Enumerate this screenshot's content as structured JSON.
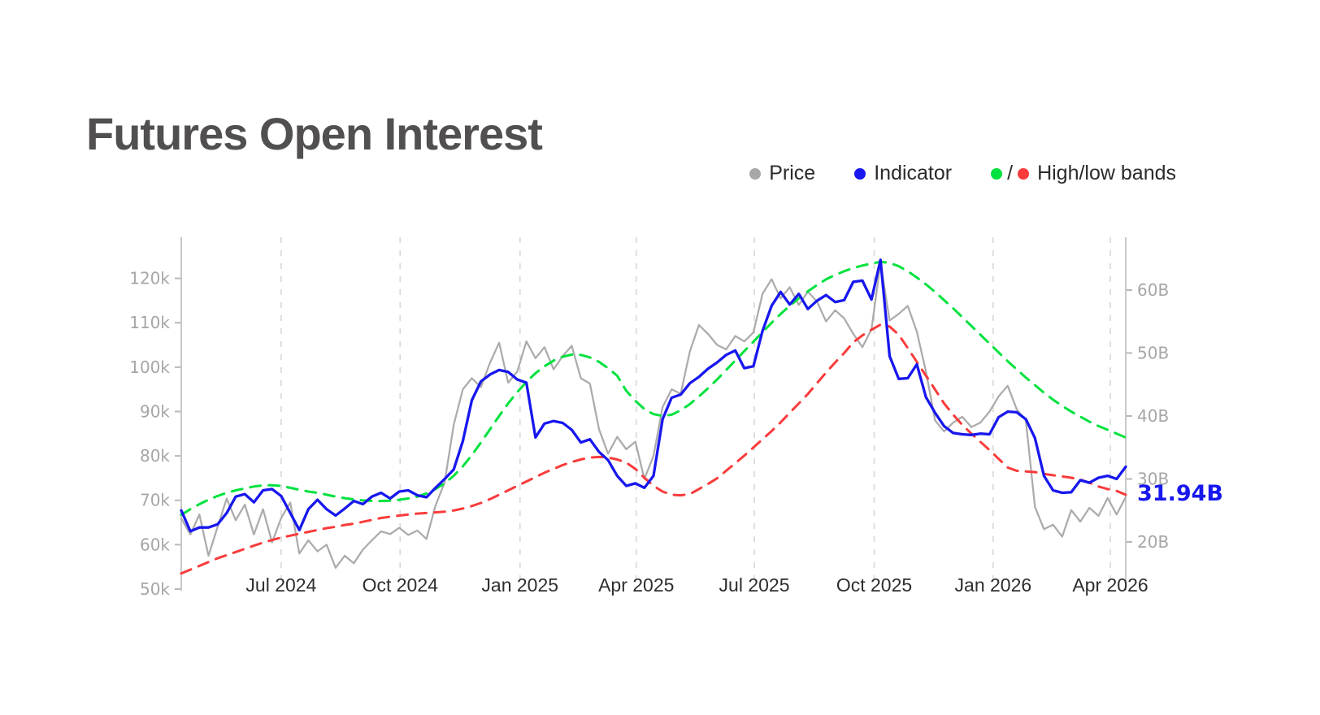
{
  "page": {
    "background": "#ffffff"
  },
  "header": {
    "title": "Futures Open Interest"
  },
  "legend": {
    "items": [
      {
        "id": "price",
        "label": "Price",
        "dot_colors": [
          "#a8a8a8"
        ]
      },
      {
        "id": "indicator",
        "label": "Indicator",
        "dot_colors": [
          "#1717ee"
        ]
      },
      {
        "id": "bands",
        "label": "High/low bands",
        "dot_colors": [
          "#00e23e",
          "#f93b3b"
        ],
        "dot_separator": "/"
      }
    ]
  },
  "chart_data": {
    "type": "line",
    "title": "Futures Open Interest",
    "x": {
      "start_date": "2024-04-15",
      "interval": "weekly",
      "points": 105,
      "ticks": [
        {
          "label": "Jul 2024",
          "week": 11.0
        },
        {
          "label": "Oct 2024",
          "week": 24.1
        },
        {
          "label": "Jan 2025",
          "week": 37.3
        },
        {
          "label": "Apr 2025",
          "week": 50.1
        },
        {
          "label": "Jul 2025",
          "week": 63.1
        },
        {
          "label": "Oct 2025",
          "week": 76.3
        },
        {
          "label": "Jan 2026",
          "week": 89.4
        },
        {
          "label": "Apr 2026",
          "week": 102.3
        }
      ]
    },
    "axes": {
      "left": {
        "unit": "k",
        "ticks": [
          {
            "label": "50k",
            "value": 50
          },
          {
            "label": "60k",
            "value": 60
          },
          {
            "label": "70k",
            "value": 70
          },
          {
            "label": "80k",
            "value": 80
          },
          {
            "label": "90k",
            "value": 90
          },
          {
            "label": "100k",
            "value": 100
          },
          {
            "label": "110k",
            "value": 110
          },
          {
            "label": "120k",
            "value": 120
          }
        ]
      },
      "right": {
        "unit": "B",
        "ticks": [
          {
            "label": "20B",
            "value": 20
          },
          {
            "label": "30B",
            "value": 30
          },
          {
            "label": "40B",
            "value": 40
          },
          {
            "label": "50B",
            "value": 50
          },
          {
            "label": "60B",
            "value": 60
          }
        ]
      }
    },
    "grid": {
      "vertical_dashed": true,
      "horizontal": false
    },
    "series": [
      {
        "id": "price",
        "name": "Price",
        "axis": "left",
        "style": "solid",
        "color": "#ababab",
        "width": 2.25,
        "values": [
          65.9,
          62.3,
          66.8,
          57.5,
          64.0,
          70.4,
          65.5,
          69.0,
          62.3,
          68.0,
          60.5,
          66.0,
          69.5,
          58.0,
          61.0,
          58.5,
          60.0,
          54.8,
          57.5,
          55.8,
          58.9,
          61.0,
          63.0,
          62.4,
          63.8,
          62.2,
          63.2,
          61.3,
          68.8,
          74.0,
          87.0,
          95.0,
          97.5,
          95.5,
          101.0,
          105.5,
          96.5,
          99.0,
          105.8,
          102.0,
          104.5,
          99.5,
          102.5,
          104.8,
          97.5,
          96.3,
          86.0,
          80.5,
          84.3,
          81.5,
          83.2,
          74.8,
          80.0,
          91.0,
          95.0,
          94.0,
          103.5,
          109.5,
          107.5,
          105.0,
          104.0,
          107.0,
          105.8,
          107.8,
          116.5,
          119.8,
          115.5,
          118.0,
          114.0,
          117.0,
          114.8,
          110.3,
          112.8,
          111.0,
          107.5,
          104.5,
          108.5,
          123.5,
          110.5,
          112.0,
          113.8,
          108.0,
          99.0,
          88.0,
          85.5,
          87.5,
          88.8,
          86.5,
          87.5,
          90.0,
          93.4,
          95.8,
          90.5,
          88.0,
          68.5,
          63.5,
          64.5,
          61.8,
          67.8,
          65.2,
          68.3,
          66.5,
          70.5,
          66.8,
          70.7
        ]
      },
      {
        "id": "high_band",
        "name": "High band",
        "axis": "right",
        "style": "dashed",
        "color": "#00e23e",
        "width": 3,
        "values": [
          24.3,
          25.2,
          26.0,
          26.7,
          27.3,
          27.8,
          28.2,
          28.5,
          28.8,
          29.0,
          29.0,
          28.9,
          28.6,
          28.3,
          28.0,
          27.8,
          27.5,
          27.2,
          26.95,
          26.75,
          26.6,
          26.5,
          26.5,
          26.55,
          26.7,
          26.9,
          27.2,
          27.7,
          28.4,
          29.3,
          30.5,
          32.0,
          33.8,
          35.8,
          37.9,
          40.0,
          42.0,
          43.8,
          45.4,
          46.8,
          47.9,
          48.8,
          49.4,
          49.75,
          49.7,
          49.3,
          48.6,
          47.6,
          46.4,
          44.0,
          42.4,
          41.1,
          40.3,
          40.0,
          40.2,
          40.9,
          41.9,
          43.1,
          44.4,
          45.8,
          47.3,
          48.8,
          50.3,
          51.8,
          53.3,
          54.8,
          56.2,
          57.5,
          58.7,
          59.8,
          60.8,
          61.7,
          62.4,
          63.0,
          63.5,
          63.9,
          64.2,
          64.5,
          64.3,
          63.8,
          63.0,
          62.0,
          60.9,
          59.7,
          58.4,
          57.1,
          55.7,
          54.3,
          52.9,
          51.5,
          50.1,
          48.7,
          47.4,
          46.1,
          44.9,
          43.7,
          42.6,
          41.6,
          40.7,
          39.9,
          39.1,
          38.4,
          37.8,
          37.2,
          36.6
        ]
      },
      {
        "id": "low_band",
        "name": "Low band",
        "axis": "right",
        "style": "dashed",
        "color": "#f93b3b",
        "width": 3,
        "values": [
          15.0,
          15.6,
          16.2,
          16.8,
          17.4,
          17.9,
          18.4,
          18.9,
          19.4,
          19.9,
          20.3,
          20.7,
          21.0,
          21.3,
          21.6,
          21.9,
          22.2,
          22.4,
          22.7,
          22.9,
          23.2,
          23.5,
          23.8,
          24.0,
          24.2,
          24.35,
          24.5,
          24.6,
          24.7,
          24.8,
          25.0,
          25.3,
          25.7,
          26.2,
          26.8,
          27.5,
          28.2,
          28.9,
          29.6,
          30.3,
          31.0,
          31.6,
          32.2,
          32.7,
          33.1,
          33.4,
          33.5,
          33.4,
          33.1,
          32.6,
          31.6,
          30.2,
          28.9,
          28.0,
          27.5,
          27.4,
          27.6,
          28.4,
          29.2,
          30.1,
          31.3,
          32.5,
          33.7,
          35.0,
          36.3,
          37.6,
          39.0,
          40.5,
          42.0,
          43.5,
          45.2,
          46.9,
          48.5,
          50.0,
          51.7,
          52.8,
          53.7,
          54.5,
          54.2,
          52.9,
          50.8,
          48.6,
          46.4,
          44.2,
          42.0,
          40.2,
          38.6,
          37.2,
          35.9,
          34.6,
          33.2,
          31.8,
          31.3,
          31.2,
          31.1,
          30.8,
          30.6,
          30.4,
          30.2,
          29.9,
          29.4,
          28.8,
          28.4,
          28.1,
          27.5
        ]
      },
      {
        "id": "indicator",
        "name": "Indicator",
        "axis": "right",
        "style": "solid",
        "color": "#1717ee",
        "width": 3.3,
        "current_value_label": "31.94B",
        "values": [
          25.0,
          21.7,
          22.3,
          22.3,
          22.8,
          24.6,
          27.2,
          27.6,
          26.3,
          28.2,
          28.4,
          27.3,
          24.6,
          21.9,
          25.2,
          26.7,
          25.2,
          24.2,
          25.3,
          26.5,
          26.0,
          27.2,
          27.8,
          26.9,
          28.0,
          28.2,
          27.4,
          27.1,
          28.6,
          30.0,
          31.5,
          36.0,
          42.5,
          45.5,
          46.6,
          47.3,
          47.0,
          45.8,
          45.3,
          36.6,
          38.8,
          39.2,
          38.9,
          37.8,
          35.8,
          36.3,
          34.3,
          33.0,
          30.5,
          28.9,
          29.3,
          28.6,
          30.5,
          39.5,
          42.9,
          43.4,
          45.2,
          46.2,
          47.5,
          48.5,
          49.7,
          50.4,
          47.6,
          47.9,
          53.5,
          57.5,
          59.7,
          57.7,
          59.4,
          57.0,
          58.3,
          59.2,
          58.1,
          58.4,
          61.3,
          61.5,
          58.5,
          64.8,
          49.5,
          45.9,
          46.0,
          48.2,
          43.0,
          40.5,
          38.4,
          37.3,
          37.1,
          37.0,
          37.2,
          37.1,
          39.8,
          40.7,
          40.6,
          39.5,
          36.5,
          30.5,
          28.2,
          27.8,
          27.9,
          29.8,
          29.4,
          30.2,
          30.5,
          30.0,
          31.94
        ]
      }
    ]
  }
}
